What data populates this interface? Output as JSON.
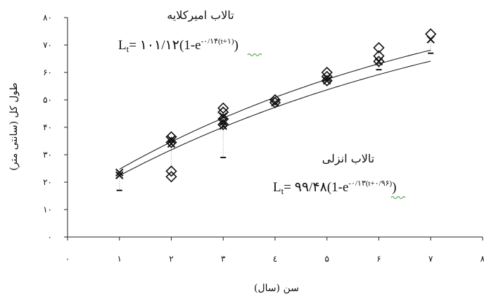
{
  "chart_data": {
    "type": "scatter",
    "title": "",
    "xlabel": "سن (سال)",
    "ylabel": "طول کل (سانتی متر)",
    "xlim": [
      0,
      8
    ],
    "ylim": [
      0,
      80
    ],
    "x_ticks": [
      {
        "value": 0,
        "label": "۰"
      },
      {
        "value": 1,
        "label": "۱"
      },
      {
        "value": 2,
        "label": "۲"
      },
      {
        "value": 3,
        "label": "۳"
      },
      {
        "value": 4,
        "label": "٤"
      },
      {
        "value": 5,
        "label": "۵"
      },
      {
        "value": 6,
        "label": "۶"
      },
      {
        "value": 7,
        "label": "۷"
      },
      {
        "value": 8,
        "label": "۸"
      }
    ],
    "y_ticks": [
      {
        "value": 0,
        "label": "۰"
      },
      {
        "value": 10,
        "label": "۱۰"
      },
      {
        "value": 20,
        "label": "۲۰"
      },
      {
        "value": 30,
        "label": "۳۰"
      },
      {
        "value": 40,
        "label": "۴۰"
      },
      {
        "value": 50,
        "label": "۵۰"
      },
      {
        "value": 60,
        "label": "۶۰"
      },
      {
        "value": 70,
        "label": "۷۰"
      },
      {
        "value": 80,
        "label": "۸۰"
      }
    ],
    "grid": false,
    "series": [
      {
        "marker": "diamond",
        "points": [
          [
            2,
            34.5
          ],
          [
            2,
            36.5
          ],
          [
            2,
            24
          ],
          [
            2,
            22
          ],
          [
            3,
            41
          ],
          [
            3,
            43
          ],
          [
            3,
            45.5
          ],
          [
            3,
            47
          ],
          [
            4,
            49
          ],
          [
            4,
            50
          ],
          [
            5,
            57
          ],
          [
            5,
            58.5
          ],
          [
            5,
            60
          ],
          [
            6,
            64
          ],
          [
            6,
            66
          ],
          [
            6,
            69
          ],
          [
            7,
            74
          ]
        ]
      },
      {
        "marker": "cross",
        "points": [
          [
            1,
            22.5
          ],
          [
            1,
            23.5
          ],
          [
            2,
            34
          ],
          [
            2,
            35.5
          ],
          [
            3,
            40.5
          ],
          [
            3,
            42
          ],
          [
            3,
            44
          ],
          [
            4,
            49
          ],
          [
            5,
            57
          ],
          [
            5,
            58
          ],
          [
            6,
            64
          ],
          [
            7,
            72
          ]
        ]
      },
      {
        "marker": "dash",
        "points": [
          [
            1,
            17
          ],
          [
            3,
            29
          ],
          [
            7,
            67
          ],
          [
            6,
            61
          ]
        ]
      }
    ],
    "curves": [
      {
        "Linf": 101.12,
        "k": 0.14,
        "t0": -1
      },
      {
        "Linf": 99.48,
        "k": 0.13,
        "t0": -0.96
      }
    ],
    "annotations": [
      {
        "title": "تالاب امیرکلایه",
        "equation": {
          "lhs": "L",
          "sub": "t",
          "eq": "= ۱۰۱/۱۲",
          "body": "(1-e",
          "exp": "-۰/۱۴(t+۱)",
          "close": ")"
        }
      },
      {
        "title": "تالاب انزلی",
        "equation": {
          "lhs": "L",
          "sub": "t",
          "eq": "= ۹۹/۴۸",
          "body": "(1-e",
          "exp": "-۰/۱۳(t+۰/۹۶)",
          "close": ")"
        }
      }
    ]
  }
}
